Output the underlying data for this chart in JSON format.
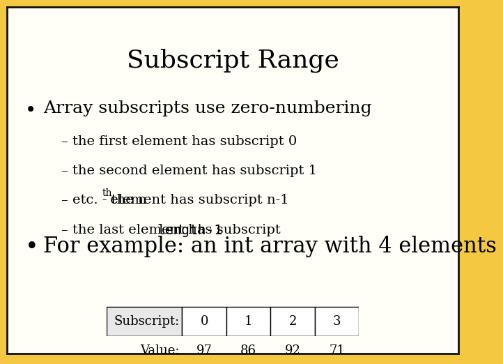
{
  "title": "Subscript Range",
  "background_color": "#F5C842",
  "slide_bg": "#FFFFF8",
  "border_color": "#111111",
  "bullet1": "Array subscripts use zero-numbering",
  "sub1": "– the first element has subscript 0",
  "sub2": "– the second element has subscript 1",
  "sub3_pre": "– etc. - the n",
  "sub3_sup": "th",
  "sub3_post": " element has subscript n-1",
  "sub4_pre": "– the last element has subscript ",
  "sub4_mono": "length-1",
  "bullet2": "For example: an int array with 4 elements",
  "table_headers": [
    "Subscript:",
    "0",
    "1",
    "2",
    "3"
  ],
  "table_row2": [
    "Value:",
    "97",
    "86",
    "92",
    "71"
  ],
  "title_fontsize": 26,
  "bullet1_fontsize": 18,
  "sub_fontsize": 14,
  "bullet2_fontsize": 22,
  "table_fontsize": 13
}
